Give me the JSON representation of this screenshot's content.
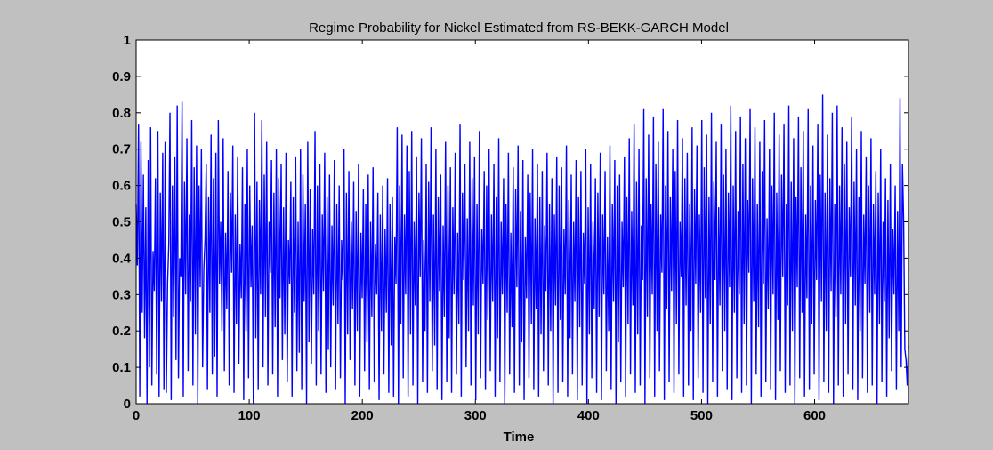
{
  "chart_data": {
    "type": "line",
    "title": "Regime Probability for Nickel Estimated from RS-BEKK-GARCH Model",
    "xlabel": "Time",
    "ylabel": "",
    "xlim": [
      0,
      683
    ],
    "ylim": [
      0,
      1
    ],
    "xticks": [
      0,
      100,
      200,
      300,
      400,
      500,
      600
    ],
    "yticks": [
      0,
      0.1,
      0.2,
      0.3,
      0.4,
      0.5,
      0.6,
      0.7,
      0.8,
      0.9,
      1
    ],
    "xtick_labels": [
      "0",
      "100",
      "200",
      "300",
      "400",
      "500",
      "600"
    ],
    "ytick_labels": [
      "0",
      "0.1",
      "0.2",
      "0.3",
      "0.4",
      "0.5",
      "0.6",
      "0.7",
      "0.8",
      "0.9",
      "1"
    ],
    "grid": false,
    "legend": "none",
    "series_color": "#0000ff",
    "background_color": "#c0c0c0",
    "axes_color": "#ffffff",
    "series": [
      {
        "values": [
          0.55,
          0.38,
          0.77,
          0.02,
          0.72,
          0.25,
          0.63,
          0.18,
          0.54,
          0.0,
          0.67,
          0.1,
          0.76,
          0.05,
          0.42,
          0.31,
          0.62,
          0.08,
          0.75,
          0.02,
          0.58,
          0.28,
          0.69,
          0.04,
          0.72,
          0.03,
          0.33,
          0.44,
          0.8,
          0.01,
          0.6,
          0.24,
          0.68,
          0.12,
          0.82,
          0.07,
          0.4,
          0.35,
          0.83,
          0.02,
          0.61,
          0.3,
          0.73,
          0.09,
          0.52,
          0.28,
          0.78,
          0.05,
          0.65,
          0.19,
          0.71,
          0.0,
          0.6,
          0.32,
          0.7,
          0.1,
          0.37,
          0.45,
          0.66,
          0.04,
          0.57,
          0.25,
          0.74,
          0.08,
          0.62,
          0.13,
          0.69,
          0.02,
          0.78,
          0.33,
          0.5,
          0.2,
          0.73,
          0.09,
          0.47,
          0.26,
          0.64,
          0.05,
          0.58,
          0.36,
          0.71,
          0.03,
          0.52,
          0.22,
          0.68,
          0.11,
          0.44,
          0.29,
          0.65,
          0.01,
          0.55,
          0.2,
          0.7,
          0.07,
          0.6,
          0.32,
          0.49,
          0.0,
          0.8,
          0.18,
          0.61,
          0.04,
          0.56,
          0.3,
          0.78,
          0.1,
          0.63,
          0.24,
          0.72,
          0.05,
          0.5,
          0.36,
          0.67,
          0.08,
          0.58,
          0.21,
          0.7,
          0.02,
          0.62,
          0.29,
          0.66,
          0.12,
          0.54,
          0.19,
          0.69,
          0.06,
          0.45,
          0.33,
          0.61,
          0.02,
          0.57,
          0.25,
          0.68,
          0.09,
          0.5,
          0.14,
          0.7,
          0.04,
          0.63,
          0.28,
          0.55,
          0.0,
          0.72,
          0.17,
          0.59,
          0.11,
          0.48,
          0.3,
          0.75,
          0.05,
          0.6,
          0.2,
          0.66,
          0.08,
          0.52,
          0.31,
          0.69,
          0.03,
          0.57,
          0.15,
          0.63,
          0.1,
          0.49,
          0.27,
          0.67,
          0.04,
          0.55,
          0.22,
          0.6,
          0.07,
          0.45,
          0.34,
          0.7,
          0.0,
          0.58,
          0.19,
          0.64,
          0.12,
          0.5,
          0.26,
          0.61,
          0.05,
          0.53,
          0.2,
          0.66,
          0.02,
          0.47,
          0.29,
          0.59,
          0.09,
          0.55,
          0.17,
          0.63,
          0.04,
          0.5,
          0.24,
          0.65,
          0.06,
          0.44,
          0.3,
          0.58,
          0.01,
          0.52,
          0.2,
          0.6,
          0.08,
          0.48,
          0.25,
          0.62,
          0.03,
          0.55,
          0.16,
          0.57,
          0.02,
          0.46,
          0.33,
          0.76,
          0.0,
          0.6,
          0.22,
          0.74,
          0.07,
          0.52,
          0.3,
          0.71,
          0.02,
          0.64,
          0.19,
          0.75,
          0.05,
          0.5,
          0.27,
          0.68,
          0.0,
          0.58,
          0.35,
          0.73,
          0.06,
          0.45,
          0.2,
          0.66,
          0.03,
          0.61,
          0.28,
          0.76,
          0.09,
          0.52,
          0.16,
          0.7,
          0.04,
          0.57,
          0.31,
          0.63,
          0.01,
          0.49,
          0.24,
          0.72,
          0.06,
          0.6,
          0.18,
          0.65,
          0.03,
          0.54,
          0.3,
          0.69,
          0.08,
          0.47,
          0.22,
          0.77,
          0.02,
          0.58,
          0.34,
          0.66,
          0.1,
          0.51,
          0.2,
          0.72,
          0.05,
          0.62,
          0.27,
          0.68,
          0.01,
          0.55,
          0.19,
          0.75,
          0.07,
          0.48,
          0.33,
          0.64,
          0.04,
          0.6,
          0.23,
          0.7,
          0.09,
          0.52,
          0.28,
          0.66,
          0.02,
          0.57,
          0.18,
          0.73,
          0.06,
          0.5,
          0.3,
          0.62,
          0.0,
          0.55,
          0.25,
          0.69,
          0.08,
          0.47,
          0.21,
          0.65,
          0.03,
          0.59,
          0.32,
          0.71,
          0.05,
          0.53,
          0.17,
          0.67,
          0.01,
          0.46,
          0.29,
          0.63,
          0.07,
          0.58,
          0.22,
          0.7,
          0.04,
          0.51,
          0.26,
          0.66,
          0.02,
          0.57,
          0.19,
          0.64,
          0.09,
          0.49,
          0.31,
          0.69,
          0.05,
          0.55,
          0.2,
          0.62,
          0.0,
          0.52,
          0.27,
          0.68,
          0.03,
          0.6,
          0.23,
          0.65,
          0.06,
          0.48,
          0.3,
          0.71,
          0.02,
          0.56,
          0.18,
          0.63,
          0.08,
          0.5,
          0.28,
          0.67,
          0.01,
          0.57,
          0.21,
          0.64,
          0.05,
          0.47,
          0.33,
          0.7,
          0.0,
          0.54,
          0.19,
          0.66,
          0.07,
          0.5,
          0.26,
          0.62,
          0.03,
          0.58,
          0.24,
          0.69,
          0.01,
          0.52,
          0.3,
          0.64,
          0.09,
          0.46,
          0.2,
          0.71,
          0.04,
          0.55,
          0.28,
          0.67,
          0.0,
          0.6,
          0.17,
          0.63,
          0.06,
          0.5,
          0.32,
          0.68,
          0.02,
          0.57,
          0.22,
          0.73,
          0.08,
          0.53,
          0.27,
          0.77,
          0.03,
          0.61,
          0.19,
          0.7,
          0.05,
          0.49,
          0.34,
          0.81,
          0.0,
          0.62,
          0.24,
          0.74,
          0.07,
          0.55,
          0.3,
          0.79,
          0.02,
          0.66,
          0.2,
          0.72,
          0.09,
          0.52,
          0.36,
          0.81,
          0.01,
          0.6,
          0.26,
          0.75,
          0.06,
          0.57,
          0.31,
          0.7,
          0.03,
          0.64,
          0.22,
          0.78,
          0.08,
          0.5,
          0.35,
          0.73,
          0.02,
          0.62,
          0.27,
          0.69,
          0.05,
          0.55,
          0.2,
          0.76,
          0.01,
          0.59,
          0.33,
          0.71,
          0.07,
          0.52,
          0.25,
          0.78,
          0.03,
          0.65,
          0.29,
          0.74,
          0.0,
          0.57,
          0.22,
          0.8,
          0.06,
          0.61,
          0.34,
          0.72,
          0.02,
          0.54,
          0.27,
          0.77,
          0.09,
          0.63,
          0.2,
          0.7,
          0.04,
          0.58,
          0.32,
          0.82,
          0.01,
          0.6,
          0.25,
          0.75,
          0.07,
          0.53,
          0.3,
          0.79,
          0.03,
          0.66,
          0.22,
          0.73,
          0.05,
          0.56,
          0.36,
          0.81,
          0.0,
          0.62,
          0.28,
          0.76,
          0.08,
          0.55,
          0.21,
          0.72,
          0.02,
          0.64,
          0.33,
          0.78,
          0.06,
          0.51,
          0.26,
          0.7,
          0.04,
          0.6,
          0.3,
          0.8,
          0.01,
          0.58,
          0.23,
          0.74,
          0.09,
          0.63,
          0.35,
          0.77,
          0.03,
          0.55,
          0.27,
          0.82,
          0.05,
          0.61,
          0.2,
          0.73,
          0.0,
          0.57,
          0.32,
          0.79,
          0.07,
          0.65,
          0.25,
          0.75,
          0.02,
          0.52,
          0.29,
          0.81,
          0.04,
          0.6,
          0.22,
          0.71,
          0.08,
          0.56,
          0.34,
          0.77,
          0.01,
          0.63,
          0.28,
          0.85,
          0.06,
          0.58,
          0.2,
          0.74,
          0.03,
          0.62,
          0.31,
          0.8,
          0.0,
          0.55,
          0.24,
          0.82,
          0.05,
          0.6,
          0.3,
          0.76,
          0.02,
          0.66,
          0.22,
          0.72,
          0.08,
          0.54,
          0.35,
          0.79,
          0.04,
          0.61,
          0.27,
          0.7,
          0.01,
          0.57,
          0.2,
          0.75,
          0.07,
          0.52,
          0.33,
          0.68,
          0.03,
          0.6,
          0.25,
          0.73,
          0.05,
          0.55,
          0.3,
          0.64,
          0.0,
          0.58,
          0.22,
          0.7,
          0.06,
          0.5,
          0.28,
          0.62,
          0.02,
          0.56,
          0.18,
          0.66,
          0.09,
          0.48,
          0.3,
          0.6,
          0.04,
          0.53,
          0.2,
          0.84,
          0.1,
          0.66,
          0.5,
          0.15,
          0.12,
          0.05,
          0.16
        ]
      }
    ]
  }
}
